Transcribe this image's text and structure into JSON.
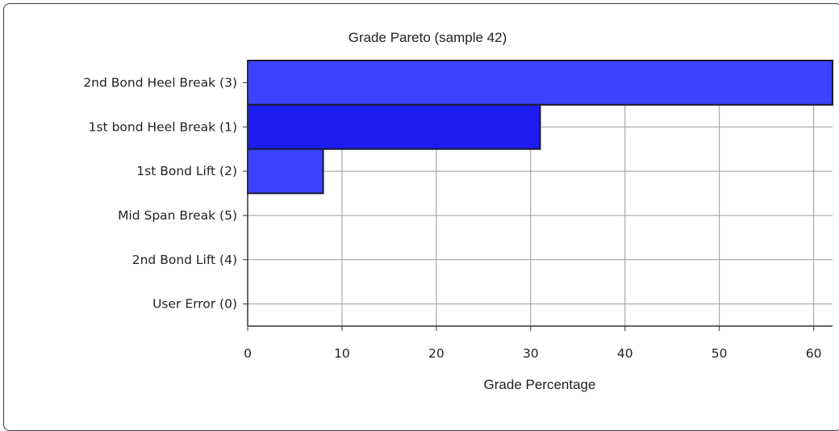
{
  "chart_data": {
    "type": "bar",
    "orientation": "horizontal",
    "title": "Grade Pareto (sample 42)",
    "xlabel": "Grade Percentage",
    "ylabel": "",
    "categories": [
      "2nd Bond Heel Break  (3)",
      "1st bond Heel Break (1)",
      "1st Bond Lift (2)",
      "Mid Span Break (5)",
      "2nd Bond Lift (4)",
      "User Error (0)"
    ],
    "values": [
      62,
      31,
      8,
      0,
      0,
      0
    ],
    "xlim": [
      0,
      62
    ],
    "xticks": [
      "0",
      "10",
      "20",
      "30",
      "40",
      "50",
      "60"
    ],
    "grid": true,
    "legend": "none",
    "colors": {
      "bars": [
        "#3a44ff",
        "#1c1cf2",
        "#3a44ff",
        "#3a44ff",
        "#3a44ff",
        "#3a44ff"
      ],
      "bar_border": "#1a1a2e",
      "grid": "#9a9a9a",
      "axis": "#333333"
    }
  }
}
